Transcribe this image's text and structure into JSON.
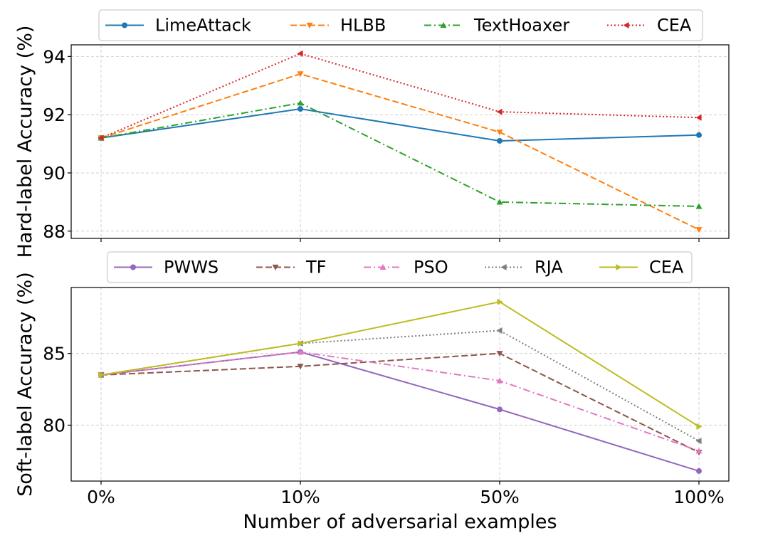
{
  "chart_data": [
    {
      "type": "line",
      "categories": [
        "0%",
        "10%",
        "50%",
        "100%"
      ],
      "ylabel": "Hard-label Accuracy (%)",
      "xlabel": "",
      "ylim": [
        87.75,
        94.4
      ],
      "yticks": [
        88,
        90,
        92,
        94
      ],
      "ytick_labels": [
        "88",
        "90",
        "92",
        "94"
      ],
      "grid": true,
      "legend_position": "top",
      "series": [
        {
          "name": "LimeAttack",
          "values": [
            91.2,
            92.2,
            91.1,
            91.3
          ],
          "color": "#1f77b4",
          "dash": "solid",
          "marker": "circle"
        },
        {
          "name": "HLBB",
          "values": [
            91.2,
            93.4,
            91.4,
            88.05
          ],
          "color": "#ff7f0e",
          "dash": "dashed",
          "marker": "tri-down"
        },
        {
          "name": "TextHoaxer",
          "values": [
            91.2,
            92.4,
            89.0,
            88.85
          ],
          "color": "#2ca02c",
          "dash": "dashdot",
          "marker": "tri-up"
        },
        {
          "name": "CEA",
          "values": [
            91.2,
            94.1,
            92.1,
            91.9
          ],
          "color": "#d62728",
          "dash": "dotted",
          "marker": "tri-left"
        }
      ]
    },
    {
      "type": "line",
      "categories": [
        "0%",
        "10%",
        "50%",
        "100%"
      ],
      "ylabel": "Soft-label Accuracy (%)",
      "xlabel": "Number of adversarial examples",
      "ylim": [
        76.1,
        89.6
      ],
      "yticks": [
        80,
        85
      ],
      "ytick_labels": [
        "80",
        "85"
      ],
      "grid": true,
      "legend_position": "top",
      "series": [
        {
          "name": "PWWS",
          "values": [
            83.5,
            85.1,
            81.1,
            76.8
          ],
          "color": "#9467bd",
          "dash": "solid",
          "marker": "circle"
        },
        {
          "name": "TF",
          "values": [
            83.5,
            84.1,
            85.0,
            78.1
          ],
          "color": "#8c564b",
          "dash": "dashed",
          "marker": "tri-down"
        },
        {
          "name": "PSO",
          "values": [
            83.5,
            85.1,
            83.1,
            78.2
          ],
          "color": "#e377c2",
          "dash": "dashdot",
          "marker": "tri-up"
        },
        {
          "name": "RJA",
          "values": [
            83.5,
            85.7,
            86.6,
            78.9
          ],
          "color": "#7f7f7f",
          "dash": "dotted",
          "marker": "tri-left"
        },
        {
          "name": "CEA",
          "values": [
            83.5,
            85.7,
            88.6,
            79.9
          ],
          "color": "#bcbd22",
          "dash": "solid",
          "marker": "tri-right"
        }
      ]
    }
  ]
}
